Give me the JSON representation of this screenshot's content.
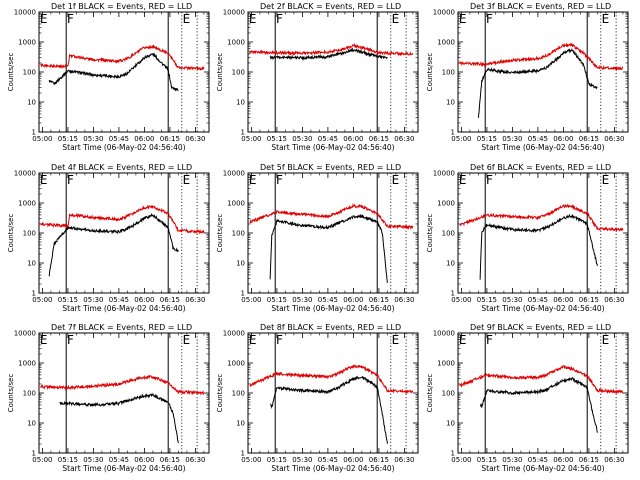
{
  "chart_data": [
    {
      "type": "line",
      "title": "Det 1f BLACK = Events, RED = LLD",
      "xlabel": "Start Time (06-May-02 04:56:40)",
      "ylabel": "Counts/sec",
      "yscale": "log",
      "ylim": [
        1,
        10000
      ],
      "x_ticks": [
        "05:00",
        "05:15",
        "05:30",
        "05:45",
        "06:00",
        "06:15",
        "06:30"
      ],
      "y_ticks": [
        "1",
        "10",
        "100",
        "1000",
        "10000"
      ],
      "flags": [
        "E",
        "F",
        "E"
      ],
      "series_colors": {
        "events": "#000000",
        "lld": "#e00000"
      },
      "series": [
        {
          "x": [
            "05:04",
            "05:07",
            "05:15",
            "05:30",
            "05:45",
            "05:50",
            "06:00",
            "06:05",
            "06:14",
            "06:16",
            "06:20"
          ],
          "values": [
            50,
            40,
            110,
            80,
            70,
            90,
            300,
            400,
            120,
            30,
            25
          ]
        },
        {
          "x": [
            "04:59",
            "05:15",
            "05:16",
            "05:30",
            "05:45",
            "05:50",
            "06:00",
            "06:05",
            "06:14",
            "06:20",
            "06:35"
          ],
          "values": [
            170,
            150,
            350,
            260,
            230,
            280,
            650,
            700,
            420,
            140,
            130
          ]
        }
      ]
    },
    {
      "type": "line",
      "title": "Det 2f BLACK = Events, RED = LLD",
      "xlabel": "Start Time (06-May-02 04:56:40)",
      "ylabel": "Counts/sec",
      "yscale": "log",
      "ylim": [
        1,
        10000
      ],
      "x_ticks": [
        "05:00",
        "05:15",
        "05:30",
        "05:45",
        "06:00",
        "06:15",
        "06:30"
      ],
      "y_ticks": [
        "1",
        "10",
        "100",
        "1000",
        "10000"
      ],
      "flags": [
        "E",
        "F",
        "E"
      ],
      "series_colors": {
        "events": "#000000",
        "lld": "#e00000"
      },
      "series": [
        {
          "x": [
            "05:11",
            "05:15",
            "05:30",
            "05:45",
            "05:55",
            "06:00",
            "06:10",
            "06:15",
            "06:20"
          ],
          "values": [
            300,
            310,
            300,
            320,
            450,
            550,
            380,
            320,
            300
          ]
        },
        {
          "x": [
            "04:59",
            "05:15",
            "05:30",
            "05:45",
            "05:55",
            "06:00",
            "06:10",
            "06:15",
            "06:35"
          ],
          "values": [
            460,
            440,
            420,
            460,
            600,
            750,
            550,
            430,
            400
          ]
        }
      ]
    },
    {
      "type": "line",
      "title": "Det 3f BLACK = Events, RED = LLD",
      "xlabel": "Start Time (06-May-02 04:56:40)",
      "ylabel": "Counts/sec",
      "yscale": "log",
      "ylim": [
        1,
        10000
      ],
      "x_ticks": [
        "05:00",
        "05:15",
        "05:30",
        "05:45",
        "06:00",
        "06:15",
        "06:30"
      ],
      "y_ticks": [
        "1",
        "10",
        "100",
        "1000",
        "10000"
      ],
      "flags": [
        "E",
        "F",
        "E"
      ],
      "series_colors": {
        "events": "#000000",
        "lld": "#e00000"
      },
      "series": [
        {
          "x": [
            "05:10",
            "05:12",
            "05:15",
            "05:30",
            "05:45",
            "05:50",
            "06:00",
            "06:05",
            "06:12",
            "06:15",
            "06:20"
          ],
          "values": [
            3,
            50,
            120,
            95,
            110,
            140,
            420,
            550,
            170,
            40,
            30
          ]
        },
        {
          "x": [
            "04:59",
            "05:15",
            "05:30",
            "05:45",
            "05:50",
            "06:00",
            "06:05",
            "06:12",
            "06:20",
            "06:35"
          ],
          "values": [
            200,
            180,
            250,
            280,
            350,
            750,
            800,
            420,
            140,
            130
          ]
        }
      ]
    },
    {
      "type": "line",
      "title": "Det 4f BLACK = Events, RED = LLD",
      "xlabel": "Start Time (06-May-02 04:56:40)",
      "ylabel": "Counts/sec",
      "yscale": "log",
      "ylim": [
        1,
        10000
      ],
      "x_ticks": [
        "05:00",
        "05:15",
        "05:30",
        "05:45",
        "06:00",
        "06:15",
        "06:30"
      ],
      "y_ticks": [
        "1",
        "10",
        "100",
        "1000",
        "10000"
      ],
      "flags": [
        "E",
        "F",
        "E"
      ],
      "series_colors": {
        "events": "#000000",
        "lld": "#e00000"
      },
      "series": [
        {
          "x": [
            "05:04",
            "05:07",
            "05:15",
            "05:30",
            "05:45",
            "05:50",
            "06:00",
            "06:05",
            "06:14",
            "06:17",
            "06:20"
          ],
          "values": [
            4,
            45,
            150,
            120,
            110,
            140,
            300,
            400,
            150,
            30,
            25
          ]
        },
        {
          "x": [
            "04:59",
            "05:15",
            "05:16",
            "05:30",
            "05:45",
            "05:50",
            "06:00",
            "06:05",
            "06:14",
            "06:20",
            "06:35"
          ],
          "values": [
            200,
            170,
            400,
            330,
            280,
            360,
            700,
            750,
            450,
            120,
            110
          ]
        }
      ]
    },
    {
      "type": "line",
      "title": "Det 5f BLACK = Events, RED = LLD",
      "xlabel": "Start Time (06-May-02 04:56:40)",
      "ylabel": "Counts/sec",
      "yscale": "log",
      "ylim": [
        1,
        10000
      ],
      "x_ticks": [
        "05:00",
        "05:15",
        "05:30",
        "05:45",
        "06:00",
        "06:15",
        "06:30"
      ],
      "y_ticks": [
        "1",
        "10",
        "100",
        "1000",
        "10000"
      ],
      "flags": [
        "E",
        "F",
        "E"
      ],
      "series_colors": {
        "events": "#000000",
        "lld": "#e00000"
      },
      "series": [
        {
          "x": [
            "05:11",
            "05:12",
            "05:15",
            "05:30",
            "05:45",
            "05:50",
            "06:00",
            "06:05",
            "06:14",
            "06:17",
            "06:20"
          ],
          "values": [
            3,
            80,
            250,
            180,
            150,
            200,
            340,
            360,
            240,
            100,
            2
          ]
        },
        {
          "x": [
            "04:59",
            "05:15",
            "05:30",
            "05:45",
            "05:50",
            "06:00",
            "06:05",
            "06:14",
            "06:20",
            "06:35"
          ],
          "values": [
            230,
            500,
            420,
            350,
            450,
            800,
            750,
            450,
            170,
            160
          ]
        }
      ]
    },
    {
      "type": "line",
      "title": "Det 6f BLACK = Events, RED = LLD",
      "xlabel": "Start Time (06-May-02 04:56:40)",
      "ylabel": "Counts/sec",
      "yscale": "log",
      "ylim": [
        1,
        10000
      ],
      "x_ticks": [
        "05:00",
        "05:15",
        "05:30",
        "05:45",
        "06:00",
        "06:15",
        "06:30"
      ],
      "y_ticks": [
        "1",
        "10",
        "100",
        "1000",
        "10000"
      ],
      "flags": [
        "E",
        "F",
        "E"
      ],
      "series_colors": {
        "events": "#000000",
        "lld": "#e00000"
      },
      "series": [
        {
          "x": [
            "05:11",
            "05:12",
            "05:15",
            "05:30",
            "05:45",
            "05:50",
            "06:00",
            "06:05",
            "06:14",
            "06:17",
            "06:20"
          ],
          "values": [
            3,
            110,
            180,
            130,
            120,
            150,
            320,
            380,
            200,
            40,
            8
          ]
        },
        {
          "x": [
            "04:59",
            "05:15",
            "05:30",
            "05:45",
            "05:50",
            "06:00",
            "06:05",
            "06:14",
            "06:20",
            "06:35"
          ],
          "values": [
            180,
            400,
            350,
            330,
            400,
            800,
            750,
            450,
            140,
            130
          ]
        }
      ]
    },
    {
      "type": "line",
      "title": "Det 7f BLACK = Events, RED = LLD",
      "xlabel": "Start Time (06-May-02 04:56:40)",
      "ylabel": "Counts/sec",
      "yscale": "log",
      "ylim": [
        1,
        10000
      ],
      "x_ticks": [
        "05:00",
        "05:15",
        "05:30",
        "05:45",
        "06:00",
        "06:15",
        "06:30"
      ],
      "y_ticks": [
        "1",
        "10",
        "100",
        "1000",
        "10000"
      ],
      "flags": [
        "E",
        "F",
        "E"
      ],
      "series_colors": {
        "events": "#000000",
        "lld": "#e00000"
      },
      "series": [
        {
          "x": [
            "05:10",
            "05:15",
            "05:30",
            "05:45",
            "05:50",
            "06:00",
            "06:05",
            "06:14",
            "06:17",
            "06:20"
          ],
          "values": [
            45,
            45,
            40,
            45,
            55,
            80,
            85,
            50,
            20,
            2
          ]
        },
        {
          "x": [
            "04:59",
            "05:15",
            "05:30",
            "05:45",
            "05:50",
            "06:00",
            "06:05",
            "06:14",
            "06:20",
            "06:35"
          ],
          "values": [
            160,
            150,
            170,
            200,
            250,
            330,
            350,
            220,
            110,
            100
          ]
        }
      ]
    },
    {
      "type": "line",
      "title": "Det 8f BLACK = Events, RED = LLD",
      "xlabel": "Start Time (06-May-02 04:56:40)",
      "ylabel": "Counts/sec",
      "yscale": "log",
      "ylim": [
        1,
        10000
      ],
      "x_ticks": [
        "05:00",
        "05:15",
        "05:30",
        "05:45",
        "06:00",
        "06:15",
        "06:30"
      ],
      "y_ticks": [
        "1",
        "10",
        "100",
        "1000",
        "10000"
      ],
      "flags": [
        "E",
        "F",
        "E"
      ],
      "series_colors": {
        "events": "#000000",
        "lld": "#e00000"
      },
      "series": [
        {
          "x": [
            "05:11",
            "05:12",
            "05:15",
            "05:30",
            "05:45",
            "05:50",
            "06:00",
            "06:05",
            "06:14",
            "06:17",
            "06:20"
          ],
          "values": [
            40,
            35,
            150,
            120,
            110,
            140,
            300,
            350,
            160,
            20,
            2
          ]
        },
        {
          "x": [
            "04:59",
            "05:15",
            "05:30",
            "05:45",
            "05:50",
            "06:00",
            "06:05",
            "06:14",
            "06:20",
            "06:35"
          ],
          "values": [
            180,
            450,
            380,
            350,
            420,
            800,
            750,
            400,
            120,
            110
          ]
        }
      ]
    },
    {
      "type": "line",
      "title": "Det 9f BLACK = Events, RED = LLD",
      "xlabel": "Start Time (06-May-02 04:56:40)",
      "ylabel": "Counts/sec",
      "yscale": "log",
      "ylim": [
        1,
        10000
      ],
      "x_ticks": [
        "05:00",
        "05:15",
        "05:30",
        "05:45",
        "06:00",
        "06:15",
        "06:30"
      ],
      "y_ticks": [
        "1",
        "10",
        "100",
        "1000",
        "10000"
      ],
      "flags": [
        "E",
        "F",
        "E"
      ],
      "series_colors": {
        "events": "#000000",
        "lld": "#e00000"
      },
      "series": [
        {
          "x": [
            "05:11",
            "05:12",
            "05:15",
            "05:30",
            "05:45",
            "05:50",
            "06:00",
            "06:05",
            "06:14",
            "06:17",
            "06:20"
          ],
          "values": [
            40,
            35,
            120,
            100,
            110,
            130,
            260,
            300,
            150,
            25,
            5
          ]
        },
        {
          "x": [
            "04:59",
            "05:15",
            "05:30",
            "05:45",
            "05:50",
            "06:00",
            "06:05",
            "06:14",
            "06:20",
            "06:35"
          ],
          "values": [
            180,
            400,
            320,
            330,
            400,
            750,
            650,
            380,
            120,
            110
          ]
        }
      ]
    }
  ]
}
